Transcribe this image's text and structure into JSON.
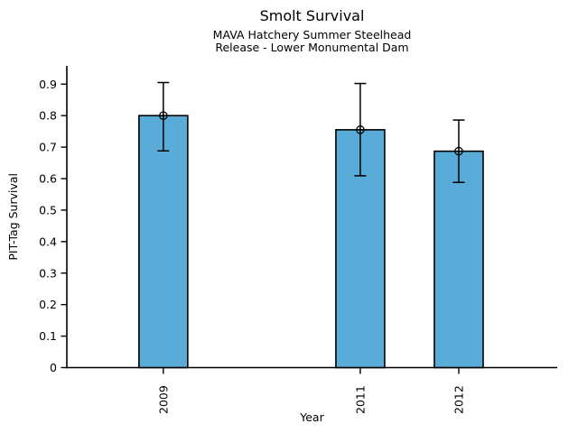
{
  "chart_data": {
    "type": "bar",
    "title": "Smolt Survival",
    "subtitle1": "MAVA Hatchery Summer Steelhead",
    "subtitle2": "Release - Lower Monumental Dam",
    "xlabel": "Year",
    "ylabel": "PIT-Tag Survival",
    "categories": [
      "2009",
      "2011",
      "2012"
    ],
    "x_values": [
      2009,
      2011,
      2012
    ],
    "values": [
      0.8,
      0.755,
      0.687
    ],
    "error_low": [
      0.688,
      0.609,
      0.588
    ],
    "error_high": [
      0.905,
      0.902,
      0.786
    ],
    "yticks": [
      0,
      0.1,
      0.2,
      0.3,
      0.4,
      0.5,
      0.6,
      0.7,
      0.8,
      0.9
    ],
    "ytick_labels": [
      "0",
      "0.1",
      "0.2",
      "0.3",
      "0.4",
      "0.5",
      "0.6",
      "0.7",
      "0.8",
      "0.9"
    ],
    "ylim": [
      0,
      0.958
    ],
    "xlim": [
      2008.02,
      2013.0
    ],
    "grid": false,
    "legend": null,
    "marker": "circle-plus",
    "bar_color": "#5AACD8",
    "bar_edge_color": "#000000",
    "error_bar_color": "#000000",
    "axis_color": "#000000",
    "text_color": "#000000"
  }
}
